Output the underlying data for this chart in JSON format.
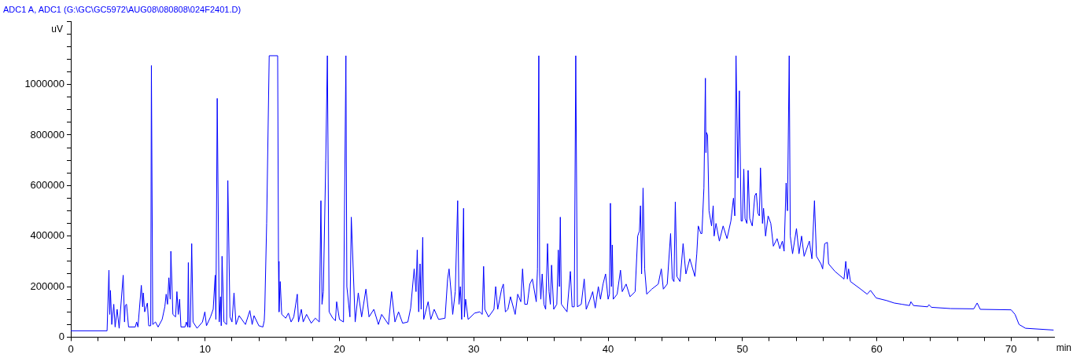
{
  "chart_data": {
    "type": "line",
    "subtitle": "ADC1 A, ADC1 (G:\\GC\\GC5972\\AUG08\\080808\\024F2401.D)",
    "xlabel": "min",
    "ylabel": "uV",
    "marker": "none",
    "line_style": "solid",
    "xlim": [
      0,
      73.2
    ],
    "xticks": [
      0,
      {
        "value": 2,
        "label": null
      },
      {
        "value": 4,
        "label": null
      },
      {
        "value": 6,
        "label": null
      },
      {
        "value": 8,
        "label": null
      },
      10,
      {
        "value": 12,
        "label": null
      },
      {
        "value": 14,
        "label": null
      },
      {
        "value": 16,
        "label": null
      },
      {
        "value": 18,
        "label": null
      },
      20,
      {
        "value": 22,
        "label": null
      },
      {
        "value": 24,
        "label": null
      },
      {
        "value": 26,
        "label": null
      },
      {
        "value": 28,
        "label": null
      },
      30,
      {
        "value": 32,
        "label": null
      },
      {
        "value": 34,
        "label": null
      },
      {
        "value": 36,
        "label": null
      },
      {
        "value": 38,
        "label": null
      },
      40,
      {
        "value": 42,
        "label": null
      },
      {
        "value": 44,
        "label": null
      },
      {
        "value": 46,
        "label": null
      },
      {
        "value": 48,
        "label": null
      },
      50,
      {
        "value": 52,
        "label": null
      },
      {
        "value": 54,
        "label": null
      },
      {
        "value": 56,
        "label": null
      },
      {
        "value": 58,
        "label": null
      },
      60,
      {
        "value": 62,
        "label": null
      },
      {
        "value": 64,
        "label": null
      },
      {
        "value": 66,
        "label": null
      },
      {
        "value": 68,
        "label": null
      },
      70,
      {
        "value": 72,
        "label": null
      }
    ],
    "ylim": [
      0,
      1250000
    ],
    "yticks": [
      0,
      {
        "value": 50000,
        "label": null
      },
      {
        "value": 100000,
        "label": null
      },
      {
        "value": 150000,
        "label": null
      },
      200000,
      {
        "value": 250000,
        "label": null
      },
      {
        "value": 300000,
        "label": null
      },
      {
        "value": 350000,
        "label": null
      },
      400000,
      {
        "value": 450000,
        "label": null
      },
      {
        "value": 500000,
        "label": null
      },
      {
        "value": 550000,
        "label": null
      },
      600000,
      {
        "value": 650000,
        "label": null
      },
      {
        "value": 700000,
        "label": null
      },
      {
        "value": 750000,
        "label": null
      },
      800000,
      {
        "value": 850000,
        "label": null
      },
      {
        "value": 900000,
        "label": null
      },
      {
        "value": 950000,
        "label": null
      },
      1000000,
      {
        "value": 1050000,
        "label": null
      },
      {
        "value": 1100000,
        "label": null
      },
      {
        "value": 1150000,
        "label": null
      },
      {
        "value": 1200000,
        "label": null
      },
      {
        "value": 1250000,
        "label": null
      }
    ],
    "series": [
      {
        "color": "#0000ff",
        "x": [
          0,
          2.7,
          2.84,
          2.9,
          2.95,
          3.05,
          3.2,
          3.3,
          3.45,
          3.6,
          3.9,
          4.0,
          4.05,
          4.15,
          4.3,
          4.8,
          4.9,
          5.0,
          5.25,
          5.35,
          5.4,
          5.5,
          5.7,
          5.8,
          5.95,
          6.0,
          6.1,
          6.3,
          6.5,
          6.8,
          7.0,
          7.1,
          7.2,
          7.3,
          7.4,
          7.45,
          7.6,
          7.8,
          7.9,
          8.0,
          8.1,
          8.2,
          8.5,
          8.6,
          8.7,
          8.75,
          8.8,
          8.9,
          9.0,
          9.1,
          9.4,
          9.8,
          9.98,
          10.1,
          10.4,
          10.6,
          10.75,
          10.8,
          10.9,
          11.05,
          11.15,
          11.2,
          11.26,
          11.4,
          11.6,
          11.69,
          11.85,
          12.0,
          12.15,
          12.3,
          12.53,
          13.0,
          13.33,
          13.5,
          13.64,
          14.0,
          14.3,
          14.4,
          14.44,
          14.58,
          14.77,
          15.4,
          15.46,
          15.5,
          15.59,
          15.7,
          16.0,
          16.2,
          16.4,
          16.6,
          16.86,
          16.95,
          17.16,
          17.3,
          17.55,
          17.9,
          18.2,
          18.5,
          18.62,
          18.7,
          18.8,
          18.98,
          19.1,
          19.23,
          19.5,
          19.7,
          19.79,
          20.0,
          20.3,
          20.48,
          20.55,
          20.78,
          20.88,
          21.17,
          21.4,
          21.65,
          21.97,
          22.2,
          22.56,
          22.9,
          23.14,
          23.65,
          23.88,
          24.13,
          24.4,
          24.7,
          25.09,
          25.3,
          25.56,
          25.7,
          25.79,
          25.9,
          26.0,
          26.08,
          26.2,
          26.27,
          26.6,
          26.8,
          27.05,
          27.38,
          27.86,
          28.05,
          28.16,
          28.34,
          28.43,
          28.62,
          28.8,
          28.9,
          29.0,
          29.1,
          29.24,
          29.3,
          29.39,
          29.58,
          30.06,
          30.44,
          30.63,
          30.73,
          30.82,
          31.1,
          31.5,
          31.63,
          31.78,
          32.07,
          32.2,
          32.35,
          32.54,
          32.73,
          33.08,
          33.27,
          33.5,
          33.63,
          33.79,
          33.98,
          34.17,
          34.36,
          34.65,
          34.74,
          34.84,
          34.9,
          34.99,
          35.09,
          35.22,
          35.35,
          35.49,
          35.6,
          35.7,
          35.79,
          35.95,
          36.18,
          36.29,
          36.37,
          36.44,
          36.52,
          36.94,
          37.19,
          37.32,
          37.48,
          37.59,
          37.71,
          38.0,
          38.22,
          38.37,
          38.66,
          38.85,
          39.04,
          39.27,
          39.43,
          39.62,
          39.81,
          40.0,
          40.1,
          40.17,
          40.25,
          40.31,
          40.38,
          40.67,
          40.92,
          41.05,
          41.34,
          41.63,
          42.01,
          42.2,
          42.33,
          42.41,
          42.49,
          42.6,
          42.72,
          42.87,
          43.25,
          43.73,
          43.96,
          44.11,
          44.4,
          44.65,
          44.78,
          44.9,
          45.0,
          45.12,
          45.35,
          45.58,
          45.79,
          46.08,
          46.46,
          46.6,
          46.71,
          46.9,
          46.98,
          47.13,
          47.24,
          47.28,
          47.32,
          47.4,
          47.51,
          47.7,
          47.82,
          47.89,
          48.03,
          48.28,
          48.56,
          48.85,
          49.14,
          49.33,
          49.43,
          49.52,
          49.66,
          49.77,
          49.9,
          50.0,
          50.1,
          50.19,
          50.33,
          50.42,
          50.54,
          50.73,
          50.92,
          51.03,
          51.15,
          51.26,
          51.34,
          51.49,
          51.57,
          51.72,
          51.91,
          52.11,
          52.3,
          52.58,
          52.78,
          52.97,
          53.1,
          53.25,
          53.35,
          53.48,
          53.56,
          53.73,
          54.02,
          54.21,
          54.4,
          54.59,
          54.98,
          55.17,
          55.36,
          55.51,
          55.84,
          55.97,
          56.12,
          56.32,
          56.41,
          56.89,
          57.56,
          57.69,
          57.81,
          57.9,
          58.04,
          58.8,
          59.28,
          59.53,
          59.95,
          60.72,
          61.29,
          61.87,
          62.44,
          62.54,
          62.73,
          63.78,
          63.88,
          64.07,
          65.5,
          67.22,
          67.47,
          67.7,
          70.0,
          70.29,
          70.59,
          71.07,
          73.16
        ],
        "values": [
          25000,
          25000,
          265000,
          90000,
          185000,
          50000,
          130000,
          40000,
          110000,
          35000,
          245000,
          60000,
          125000,
          130000,
          40000,
          40000,
          60000,
          40000,
          205000,
          120000,
          175000,
          100000,
          135000,
          45000,
          45000,
          1075000,
          50000,
          60000,
          40000,
          70000,
          120000,
          170000,
          130000,
          235000,
          150000,
          340000,
          90000,
          80000,
          180000,
          90000,
          150000,
          40000,
          40000,
          60000,
          40000,
          295000,
          40000,
          40000,
          370000,
          60000,
          35000,
          60000,
          100000,
          45000,
          80000,
          110000,
          245000,
          70000,
          945000,
          60000,
          160000,
          45000,
          320000,
          60000,
          50000,
          620000,
          80000,
          60000,
          175000,
          50000,
          85000,
          50000,
          105000,
          50000,
          85000,
          45000,
          40000,
          65000,
          110000,
          450000,
          1114000,
          1114000,
          300000,
          100000,
          220000,
          90000,
          75000,
          95000,
          60000,
          80000,
          170000,
          60000,
          110000,
          60000,
          90000,
          55000,
          75000,
          60000,
          540000,
          130000,
          180000,
          700000,
          1114000,
          100000,
          75000,
          65000,
          140000,
          70000,
          60000,
          1114000,
          200000,
          80000,
          475000,
          60000,
          175000,
          80000,
          190000,
          80000,
          110000,
          50000,
          90000,
          50000,
          180000,
          60000,
          100000,
          55000,
          60000,
          115000,
          270000,
          180000,
          345000,
          100000,
          290000,
          110000,
          395000,
          70000,
          140000,
          70000,
          110000,
          70000,
          75000,
          230000,
          270000,
          160000,
          90000,
          180000,
          540000,
          130000,
          200000,
          70000,
          510000,
          80000,
          150000,
          70000,
          95000,
          100000,
          90000,
          280000,
          110000,
          80000,
          110000,
          200000,
          110000,
          190000,
          210000,
          100000,
          110000,
          160000,
          90000,
          170000,
          140000,
          270000,
          130000,
          130000,
          210000,
          230000,
          140000,
          270000,
          1114000,
          250000,
          150000,
          250000,
          130000,
          110000,
          370000,
          180000,
          130000,
          285000,
          110000,
          130000,
          345000,
          200000,
          475000,
          130000,
          100000,
          260000,
          120000,
          120000,
          1114000,
          120000,
          130000,
          230000,
          110000,
          150000,
          180000,
          115000,
          200000,
          150000,
          210000,
          250000,
          150000,
          170000,
          530000,
          200000,
          365000,
          150000,
          170000,
          265000,
          180000,
          210000,
          160000,
          180000,
          400000,
          420000,
          520000,
          250000,
          590000,
          270000,
          170000,
          190000,
          210000,
          270000,
          190000,
          210000,
          410000,
          230000,
          220000,
          535000,
          240000,
          220000,
          370000,
          250000,
          310000,
          240000,
          330000,
          440000,
          410000,
          410000,
          590000,
          1025000,
          730000,
          810000,
          800000,
          500000,
          440000,
          520000,
          400000,
          450000,
          380000,
          440000,
          390000,
          460000,
          550000,
          480000,
          1114000,
          630000,
          975000,
          460000,
          460000,
          665000,
          470000,
          450000,
          660000,
          470000,
          440000,
          560000,
          570000,
          490000,
          480000,
          670000,
          450000,
          510000,
          400000,
          480000,
          450000,
          360000,
          390000,
          350000,
          380000,
          340000,
          610000,
          500000,
          1114000,
          400000,
          330000,
          430000,
          330000,
          400000,
          320000,
          380000,
          310000,
          540000,
          320000,
          290000,
          270000,
          370000,
          375000,
          290000,
          260000,
          230000,
          300000,
          230000,
          270000,
          220000,
          190000,
          170000,
          185000,
          155000,
          145000,
          135000,
          130000,
          125000,
          140000,
          125000,
          120000,
          128000,
          118000,
          113000,
          112000,
          135000,
          110000,
          108000,
          90000,
          50000,
          35000,
          28000
        ]
      }
    ]
  }
}
